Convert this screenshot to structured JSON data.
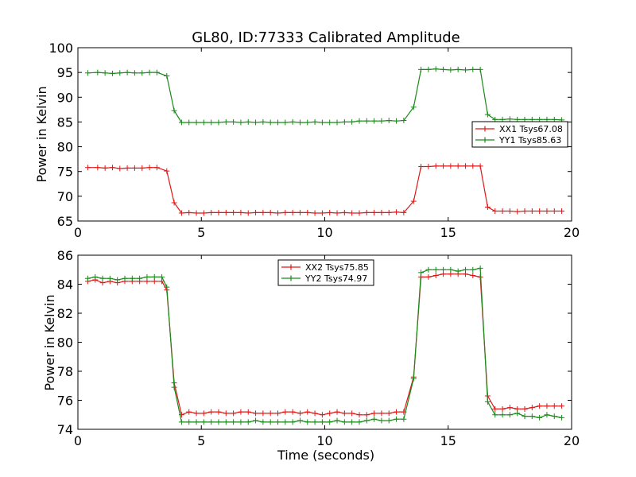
{
  "title": "GL80, ID:77333 Calibrated Amplitude",
  "colors": {
    "xx": "#e01818",
    "yy": "#1a8a1a",
    "frame": "#000000",
    "background": "#ffffff"
  },
  "chart_data": [
    {
      "type": "line",
      "title": "GL80, ID:77333 Calibrated Amplitude",
      "xlabel": "",
      "ylabel": "Power in Kelvin",
      "xlim": [
        0,
        20
      ],
      "ylim": [
        65,
        100
      ],
      "xticks": [
        "0",
        "5",
        "10",
        "15",
        "20"
      ],
      "yticks": [
        "65",
        "70",
        "75",
        "80",
        "85",
        "90",
        "95",
        "100"
      ],
      "grid": false,
      "legend_position": "center-right",
      "marker": "+",
      "x": [
        0.4,
        0.8,
        1.1,
        1.4,
        1.7,
        2.0,
        2.3,
        2.6,
        2.9,
        3.2,
        3.6,
        3.9,
        4.2,
        4.5,
        4.8,
        5.1,
        5.4,
        5.7,
        6.0,
        6.3,
        6.6,
        6.9,
        7.2,
        7.5,
        7.8,
        8.1,
        8.4,
        8.7,
        9.0,
        9.3,
        9.6,
        9.9,
        10.2,
        10.5,
        10.8,
        11.1,
        11.4,
        11.7,
        12.0,
        12.3,
        12.6,
        12.9,
        13.2,
        13.6,
        13.9,
        14.2,
        14.5,
        14.8,
        15.1,
        15.4,
        15.7,
        16.0,
        16.3,
        16.6,
        16.9,
        17.2,
        17.5,
        17.8,
        18.1,
        18.4,
        18.7,
        19.0,
        19.3,
        19.6
      ],
      "series": [
        {
          "name": "XX1 Tsys67.08",
          "color": "#e01818",
          "values": [
            75.8,
            75.8,
            75.7,
            75.8,
            75.6,
            75.7,
            75.7,
            75.7,
            75.8,
            75.8,
            75.1,
            68.7,
            66.6,
            66.7,
            66.6,
            66.6,
            66.7,
            66.7,
            66.7,
            66.7,
            66.7,
            66.6,
            66.7,
            66.7,
            66.7,
            66.6,
            66.7,
            66.7,
            66.7,
            66.7,
            66.6,
            66.6,
            66.7,
            66.6,
            66.7,
            66.6,
            66.6,
            66.7,
            66.7,
            66.7,
            66.7,
            66.8,
            66.7,
            69.0,
            76.0,
            76.0,
            76.1,
            76.1,
            76.1,
            76.1,
            76.1,
            76.1,
            76.1,
            67.8,
            67.0,
            67.0,
            67.0,
            66.9,
            67.0,
            67.0,
            67.0,
            67.0,
            67.0,
            67.0
          ]
        },
        {
          "name": "YY1 Tsys85.63",
          "color": "#1a8a1a",
          "values": [
            94.9,
            95.0,
            94.9,
            94.8,
            94.9,
            95.0,
            94.9,
            94.9,
            95.0,
            95.0,
            94.3,
            87.3,
            84.9,
            84.9,
            84.9,
            84.9,
            84.9,
            84.9,
            85.0,
            85.0,
            84.9,
            85.0,
            84.9,
            85.0,
            84.9,
            84.9,
            84.9,
            85.0,
            84.9,
            84.9,
            85.0,
            84.9,
            84.9,
            84.9,
            85.0,
            85.0,
            85.2,
            85.2,
            85.2,
            85.2,
            85.3,
            85.2,
            85.3,
            88.0,
            95.6,
            95.6,
            95.7,
            95.6,
            95.5,
            95.6,
            95.5,
            95.6,
            95.6,
            86.5,
            85.5,
            85.5,
            85.6,
            85.5,
            85.5,
            85.5,
            85.5,
            85.5,
            85.5,
            85.4
          ]
        }
      ]
    },
    {
      "type": "line",
      "title": "",
      "xlabel": "Time (seconds)",
      "ylabel": "Power in Kelvin",
      "xlim": [
        0,
        20
      ],
      "ylim": [
        74,
        86
      ],
      "xticks": [
        "0",
        "5",
        "10",
        "15",
        "20"
      ],
      "yticks": [
        "74",
        "76",
        "78",
        "80",
        "82",
        "84",
        "86"
      ],
      "grid": false,
      "legend_position": "top-center",
      "marker": "+",
      "x": [
        0.4,
        0.7,
        1.0,
        1.3,
        1.6,
        1.9,
        2.2,
        2.5,
        2.8,
        3.1,
        3.4,
        3.6,
        3.9,
        4.2,
        4.5,
        4.8,
        5.1,
        5.4,
        5.7,
        6.0,
        6.3,
        6.6,
        6.9,
        7.2,
        7.5,
        7.8,
        8.1,
        8.4,
        8.7,
        9.0,
        9.3,
        9.6,
        9.9,
        10.2,
        10.5,
        10.8,
        11.1,
        11.4,
        11.7,
        12.0,
        12.3,
        12.6,
        12.9,
        13.2,
        13.6,
        13.9,
        14.2,
        14.5,
        14.8,
        15.1,
        15.4,
        15.7,
        16.0,
        16.3,
        16.6,
        16.9,
        17.2,
        17.5,
        17.8,
        18.1,
        18.4,
        18.7,
        19.0,
        19.3,
        19.6
      ],
      "series": [
        {
          "name": "XX2 Tsys75.85",
          "color": "#e01818",
          "values": [
            84.2,
            84.3,
            84.1,
            84.2,
            84.1,
            84.2,
            84.2,
            84.2,
            84.2,
            84.2,
            84.2,
            83.6,
            77.2,
            75.0,
            75.2,
            75.1,
            75.1,
            75.2,
            75.2,
            75.1,
            75.1,
            75.2,
            75.2,
            75.1,
            75.1,
            75.1,
            75.1,
            75.2,
            75.2,
            75.1,
            75.2,
            75.1,
            75.0,
            75.1,
            75.2,
            75.1,
            75.1,
            75.0,
            75.0,
            75.1,
            75.1,
            75.1,
            75.2,
            75.2,
            77.6,
            84.5,
            84.5,
            84.6,
            84.7,
            84.7,
            84.7,
            84.7,
            84.6,
            84.5,
            76.3,
            75.4,
            75.4,
            75.5,
            75.4,
            75.4,
            75.5,
            75.6,
            75.6,
            75.6,
            75.6
          ]
        },
        {
          "name": "YY2 Tsys74.97",
          "color": "#1a8a1a",
          "values": [
            84.4,
            84.5,
            84.4,
            84.4,
            84.3,
            84.4,
            84.4,
            84.4,
            84.5,
            84.5,
            84.5,
            83.8,
            76.9,
            74.5,
            74.5,
            74.5,
            74.5,
            74.5,
            74.5,
            74.5,
            74.5,
            74.5,
            74.5,
            74.6,
            74.5,
            74.5,
            74.5,
            74.5,
            74.5,
            74.6,
            74.5,
            74.5,
            74.5,
            74.5,
            74.6,
            74.5,
            74.5,
            74.5,
            74.6,
            74.7,
            74.6,
            74.6,
            74.7,
            74.7,
            77.5,
            84.8,
            85.0,
            85.0,
            85.0,
            85.0,
            84.9,
            85.0,
            85.0,
            85.1,
            75.9,
            75.0,
            75.0,
            75.0,
            75.1,
            74.9,
            74.9,
            74.8,
            75.0,
            74.9,
            74.8
          ]
        }
      ]
    }
  ]
}
